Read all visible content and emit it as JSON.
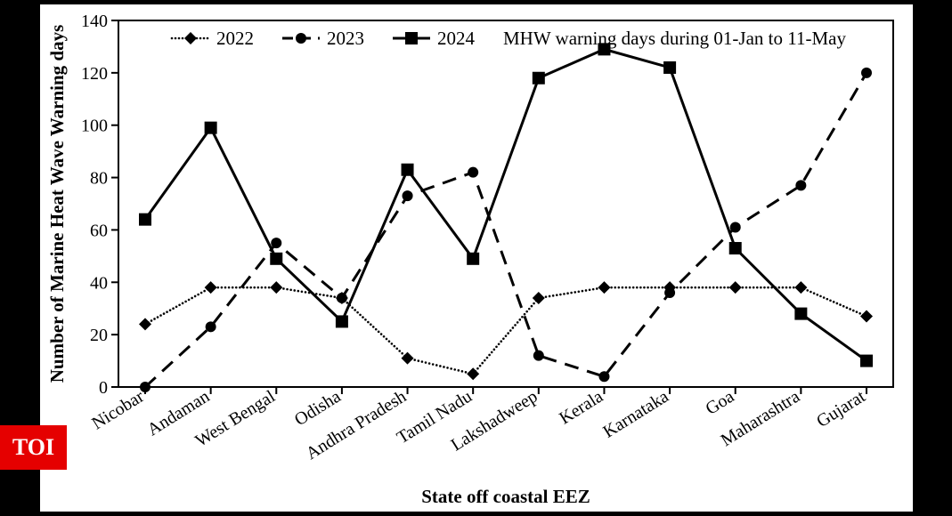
{
  "chart": {
    "type": "line",
    "background_color": "#ffffff",
    "frame_background": "#000000",
    "plot_border_color": "#000000",
    "title_text": "MHW warning days during 01-Jan to 11-May",
    "title_fontsize": 21,
    "ylabel": "Number of Marine Heat Wave Warning days",
    "xlabel": "State off coastal EEZ",
    "label_fontsize": 21,
    "tick_fontsize": 20,
    "ylim": [
      0,
      140
    ],
    "ytick_step": 20,
    "categories": [
      "Nicobar",
      "Andaman",
      "West Bengal",
      "Odisha",
      "Andhra Pradesh",
      "Tamil Nadu",
      "Lakshadweep",
      "Kerala",
      "Karnataka",
      "Goa",
      "Maharashtra",
      "Gujarat"
    ],
    "series": [
      {
        "name": "2022",
        "marker": "diamond",
        "line_style": "dotted",
        "line_width": 2,
        "color": "#000000",
        "dot_gap": 4,
        "marker_size": 7,
        "values": [
          24,
          38,
          38,
          34,
          11,
          5,
          34,
          38,
          38,
          38,
          38,
          27
        ]
      },
      {
        "name": "2023",
        "marker": "circle",
        "line_style": "dashed",
        "line_width": 3,
        "color": "#000000",
        "dash": "16 10",
        "marker_size": 6,
        "values": [
          0,
          23,
          55,
          34,
          73,
          82,
          12,
          4,
          36,
          61,
          77,
          120
        ]
      },
      {
        "name": "2024",
        "marker": "square",
        "line_style": "solid",
        "line_width": 3,
        "color": "#000000",
        "marker_size": 7,
        "values": [
          64,
          99,
          49,
          25,
          83,
          49,
          118,
          129,
          122,
          53,
          28,
          10
        ]
      }
    ],
    "legend": {
      "position": "top-inside",
      "fontsize": 21
    }
  },
  "badge": {
    "text": "TOI",
    "bg": "#e50000",
    "fg": "#ffffff"
  }
}
